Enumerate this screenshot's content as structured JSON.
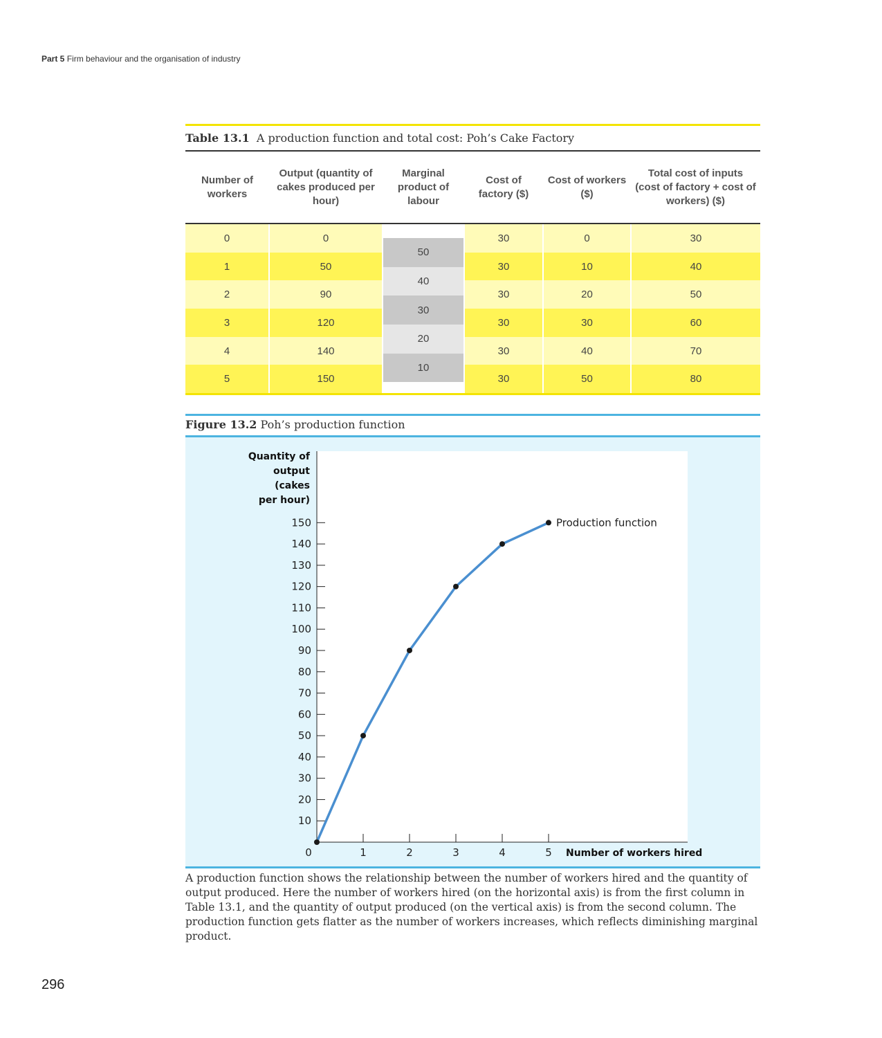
{
  "running_head": {
    "part": "Part 5",
    "title": "Firm behaviour and the organisation of industry"
  },
  "table": {
    "label": "Table 13.1",
    "title": "A production function and total cost: Poh’s Cake Factory",
    "headers": [
      "Number of workers",
      "Output (quantity of cakes produced per hour)",
      "Marginal product of labour",
      "Cost of factory ($)",
      "Cost of workers ($)",
      "Total cost of inputs (cost of factory + cost of workers) ($)"
    ],
    "rows": [
      {
        "workers": "0",
        "output": "0",
        "factory": "30",
        "worker_cost": "0",
        "total": "30"
      },
      {
        "workers": "1",
        "output": "50",
        "factory": "30",
        "worker_cost": "10",
        "total": "40"
      },
      {
        "workers": "2",
        "output": "90",
        "factory": "30",
        "worker_cost": "20",
        "total": "50"
      },
      {
        "workers": "3",
        "output": "120",
        "factory": "30",
        "worker_cost": "30",
        "total": "60"
      },
      {
        "workers": "4",
        "output": "140",
        "factory": "30",
        "worker_cost": "40",
        "total": "70"
      },
      {
        "workers": "5",
        "output": "150",
        "factory": "30",
        "worker_cost": "50",
        "total": "80"
      }
    ],
    "marginal_products": [
      "50",
      "40",
      "30",
      "20",
      "10"
    ]
  },
  "figure": {
    "label": "Figure 13.2",
    "title": "Poh’s production function",
    "note": "A production function shows the relationship between the number of workers hired and the quantity of output produced. Here the number of workers hired (on the horizontal axis) is from the first column in Table 13.1, and the quantity of output produced (on the vertical axis) is from the second column. The production function gets flatter as the number of workers increases, which reflects diminishing marginal product."
  },
  "chart_data": {
    "type": "line",
    "x": [
      0,
      1,
      2,
      3,
      4,
      5
    ],
    "series": [
      {
        "name": "Production function",
        "values": [
          0,
          50,
          90,
          120,
          140,
          150
        ]
      }
    ],
    "ylabel_lines": [
      "Quantity of",
      "output",
      "(cakes",
      "per hour)"
    ],
    "xlabel": "Number of workers hired",
    "x_ticks": [
      0,
      1,
      2,
      3,
      4,
      5
    ],
    "y_ticks": [
      10,
      20,
      30,
      40,
      50,
      60,
      70,
      80,
      90,
      100,
      110,
      120,
      130,
      140,
      150
    ],
    "xlim": [
      0,
      5
    ],
    "ylim": [
      0,
      150
    ],
    "grid": false,
    "line_color": "#4a8fd0",
    "point_color": "#1a1a1a"
  },
  "page_number": "296"
}
